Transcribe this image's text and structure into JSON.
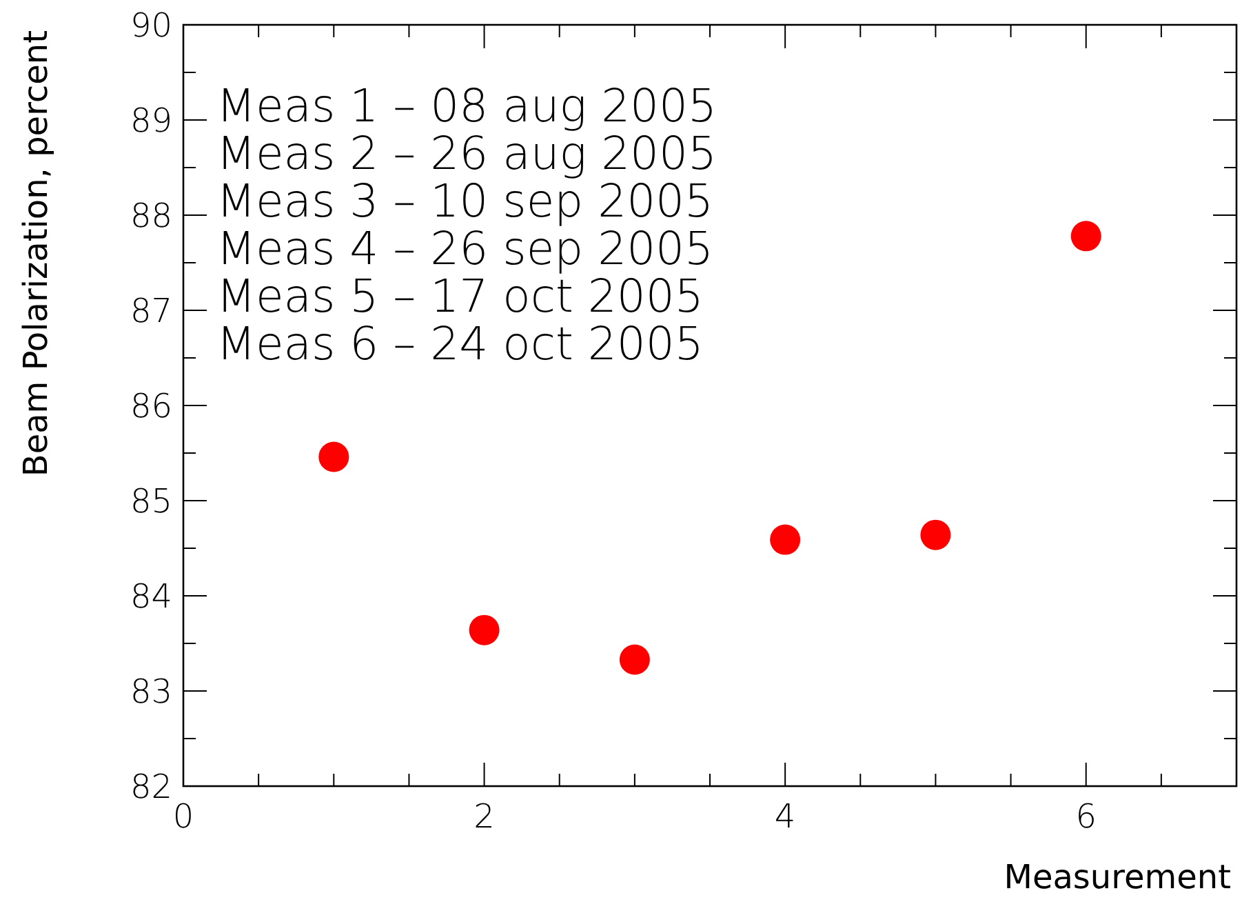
{
  "chart_data": {
    "type": "scatter",
    "xlabel": "Measurement",
    "ylabel": "Beam Polarization, percent",
    "x": [
      1,
      2,
      3,
      4,
      5,
      6
    ],
    "series": [
      {
        "color": "#ff0000",
        "values": [
          85.46,
          83.64,
          83.33,
          84.59,
          84.64,
          87.78
        ]
      }
    ],
    "marker": "circle",
    "xlim": [
      0,
      7
    ],
    "xticks": [
      0,
      {
        "value": 0.5,
        "label": null
      },
      {
        "value": 1,
        "label": null
      },
      {
        "value": 1.5,
        "label": null
      },
      2,
      {
        "value": 2.5,
        "label": null
      },
      {
        "value": 3,
        "label": null
      },
      {
        "value": 3.5,
        "label": null
      },
      4,
      {
        "value": 4.5,
        "label": null
      },
      {
        "value": 5,
        "label": null
      },
      {
        "value": 5.5,
        "label": null
      },
      6,
      {
        "value": 6.5,
        "label": null
      }
    ],
    "ylim": [
      82,
      90
    ],
    "yticks": [
      82,
      {
        "value": 82.5,
        "label": null
      },
      83,
      {
        "value": 83.5,
        "label": null
      },
      84,
      {
        "value": 84.5,
        "label": null
      },
      85,
      {
        "value": 85.5,
        "label": null
      },
      86,
      {
        "value": 86.5,
        "label": null
      },
      87,
      {
        "value": 87.5,
        "label": null
      },
      88,
      {
        "value": 88.5,
        "label": null
      },
      89,
      {
        "value": 89.5,
        "label": null
      },
      90
    ],
    "annotations": [
      "Meas 1 – 08 aug 2005",
      "Meas 2 – 26 aug 2005",
      "Meas 3 – 10 sep 2005",
      "Meas 4 – 26 sep 2005",
      "Meas 5 – 17 oct 2005",
      "Meas 6 – 24 oct 2005"
    ],
    "grid": false
  }
}
